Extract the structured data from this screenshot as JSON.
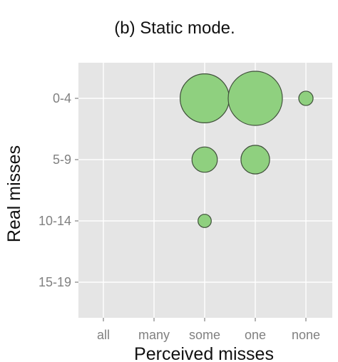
{
  "chart_data": {
    "type": "scatter",
    "title": "(b) Static mode.",
    "xlabel": "Perceived misses",
    "ylabel": "Real misses",
    "x_categories": [
      "all",
      "many",
      "some",
      "one",
      "none"
    ],
    "y_categories": [
      "0-4",
      "5-9",
      "10-14",
      "15-19"
    ],
    "size_max": 1,
    "points": [
      {
        "x": "some",
        "y": "0-4",
        "size": 0.82
      },
      {
        "x": "one",
        "y": "0-4",
        "size": 1.0
      },
      {
        "x": "none",
        "y": "0-4",
        "size": 0.07
      },
      {
        "x": "some",
        "y": "5-9",
        "size": 0.22
      },
      {
        "x": "one",
        "y": "5-9",
        "size": 0.28
      },
      {
        "x": "some",
        "y": "10-14",
        "size": 0.06
      }
    ],
    "grid": true,
    "legend": "none",
    "colors": {
      "panel": "#e5e5e5",
      "bubble_fill": "#8fd07f",
      "bubble_stroke": "#3f4f3a"
    }
  }
}
